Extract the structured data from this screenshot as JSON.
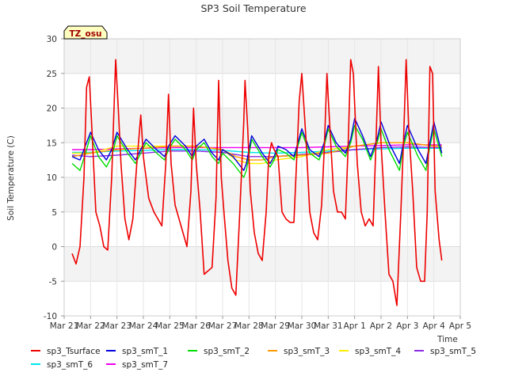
{
  "chart_data": {
    "type": "line",
    "title": "SP3 Soil Temperature",
    "xlabel": "Time",
    "ylabel": "Soil Temperature (C)",
    "annotation": "TZ_osu",
    "xlim": [
      0,
      15
    ],
    "ylim": [
      -10,
      30
    ],
    "yticks": [
      -10,
      -5,
      0,
      5,
      10,
      15,
      20,
      25,
      30
    ],
    "xtick_values": [
      0,
      1,
      2,
      3,
      4,
      5,
      6,
      7,
      8,
      9,
      10,
      11,
      12,
      13,
      14,
      15
    ],
    "xtick_labels": [
      "Mar 21",
      "Mar 22",
      "Mar 23",
      "Mar 24",
      "Mar 25",
      "Mar 26",
      "Mar 27",
      "Mar 28",
      "Mar 29",
      "Mar 30",
      "Mar 31",
      "Apr 1",
      "Apr 2",
      "Apr 3",
      "Apr 4",
      "Apr 5"
    ],
    "grid": true,
    "background_bands": true,
    "legend_position": "bottom",
    "x_units": "days since Mar 21",
    "series": [
      {
        "name": "sp3_Tsurface",
        "color": "#ee0000",
        "x": [
          0.3,
          0.45,
          0.6,
          0.75,
          0.85,
          0.95,
          1.05,
          1.2,
          1.35,
          1.5,
          1.65,
          1.8,
          1.95,
          2.05,
          2.15,
          2.3,
          2.45,
          2.6,
          2.75,
          2.9,
          3.0,
          3.2,
          3.4,
          3.55,
          3.7,
          3.85,
          3.95,
          4.05,
          4.2,
          4.35,
          4.5,
          4.65,
          4.8,
          4.9,
          5.0,
          5.15,
          5.3,
          5.45,
          5.6,
          5.75,
          5.85,
          5.95,
          6.05,
          6.2,
          6.35,
          6.5,
          6.65,
          6.8,
          6.85,
          6.95,
          7.05,
          7.2,
          7.35,
          7.5,
          7.65,
          7.75,
          7.85,
          7.95,
          8.1,
          8.25,
          8.4,
          8.55,
          8.7,
          8.8,
          8.9,
          9.0,
          9.15,
          9.3,
          9.45,
          9.6,
          9.75,
          9.85,
          9.95,
          10.05,
          10.2,
          10.35,
          10.5,
          10.65,
          10.75,
          10.85,
          10.95,
          11.1,
          11.25,
          11.4,
          11.55,
          11.7,
          11.8,
          11.9,
          12.0,
          12.15,
          12.3,
          12.45,
          12.6,
          12.75,
          12.85,
          12.95,
          13.05,
          13.2,
          13.35,
          13.5,
          13.65,
          13.75,
          13.85,
          13.95,
          14.05,
          14.2,
          14.3
        ],
        "y": [
          -1,
          -2.5,
          0,
          10,
          23,
          24.5,
          17,
          5,
          3,
          0,
          -0.5,
          10,
          27,
          20,
          12,
          4,
          1,
          4,
          12,
          19,
          13,
          7,
          5,
          4,
          3,
          12,
          22,
          12,
          6,
          4,
          2,
          0,
          8,
          20,
          12,
          5,
          -4,
          -3.5,
          -3,
          7,
          24,
          10,
          5,
          -2,
          -6,
          -7,
          5,
          18,
          24,
          17,
          8,
          2,
          -1,
          -2,
          5,
          13,
          15,
          14,
          13,
          5,
          4,
          3.5,
          3.5,
          12,
          21,
          25,
          16,
          5,
          2,
          1,
          6,
          14,
          25,
          18,
          8,
          5,
          5,
          4,
          14,
          27,
          25,
          12,
          5,
          3,
          4,
          3,
          14,
          26,
          15,
          5,
          -4,
          -5,
          -8.5,
          5,
          15,
          27,
          17,
          8,
          -3,
          -5,
          -5,
          5,
          26,
          25,
          8,
          1,
          -2
        ]
      },
      {
        "name": "sp3_smT_1",
        "color": "#0000dd",
        "x": [
          0.3,
          0.6,
          0.85,
          1.0,
          1.3,
          1.6,
          1.8,
          2.0,
          2.4,
          2.7,
          2.9,
          3.1,
          3.5,
          3.8,
          3.95,
          4.2,
          4.6,
          4.85,
          5.0,
          5.3,
          5.6,
          5.85,
          6.0,
          6.4,
          6.8,
          6.9,
          7.1,
          7.5,
          7.8,
          7.95,
          8.1,
          8.4,
          8.7,
          8.85,
          9.0,
          9.3,
          9.65,
          9.85,
          10.0,
          10.3,
          10.65,
          10.85,
          11.0,
          11.3,
          11.6,
          11.85,
          12.0,
          12.3,
          12.7,
          12.85,
          13.0,
          13.4,
          13.7,
          13.85,
          14.0,
          14.3
        ],
        "y": [
          13,
          12.5,
          15,
          16.5,
          14,
          12.5,
          14,
          16.5,
          14,
          12.5,
          14,
          15.5,
          14,
          13,
          14.5,
          16,
          14.5,
          13,
          14.5,
          15.5,
          13.5,
          12.5,
          14,
          13,
          11,
          12,
          16,
          13.5,
          12,
          13,
          14.5,
          14,
          13,
          15,
          17,
          14,
          13,
          15,
          17.5,
          15,
          13.5,
          15.5,
          18.5,
          16,
          13,
          15.5,
          18,
          15,
          12,
          15,
          17.5,
          14,
          12,
          15,
          18,
          13.5
        ]
      },
      {
        "name": "sp3_smT_2",
        "color": "#00dd00",
        "x": [
          0.3,
          0.6,
          0.85,
          1.0,
          1.3,
          1.6,
          1.8,
          2.0,
          2.4,
          2.7,
          2.9,
          3.1,
          3.5,
          3.8,
          3.95,
          4.2,
          4.6,
          4.85,
          5.0,
          5.3,
          5.6,
          5.85,
          6.0,
          6.4,
          6.8,
          6.9,
          7.1,
          7.5,
          7.8,
          7.95,
          8.1,
          8.4,
          8.7,
          8.85,
          9.0,
          9.3,
          9.65,
          9.85,
          10.0,
          10.3,
          10.65,
          10.85,
          11.0,
          11.3,
          11.6,
          11.85,
          12.0,
          12.3,
          12.7,
          12.85,
          13.0,
          13.4,
          13.7,
          13.85,
          14.0,
          14.3
        ],
        "y": [
          12,
          11,
          14,
          16,
          13,
          11.5,
          13,
          16,
          13.5,
          12,
          13.5,
          15,
          13.5,
          12.5,
          14,
          15.5,
          14,
          12.5,
          14,
          15,
          13,
          12,
          13.5,
          12,
          10,
          11,
          15.5,
          13,
          11.5,
          12.5,
          14,
          13.5,
          12.5,
          14.5,
          16.5,
          13.5,
          12.5,
          14.5,
          17,
          14.5,
          13,
          15,
          17.5,
          15.5,
          12.5,
          15,
          17,
          14,
          11,
          14.5,
          16.5,
          13,
          11,
          14.5,
          17,
          13
        ]
      },
      {
        "name": "sp3_smT_3",
        "color": "#ff9900",
        "x": [
          0.3,
          1,
          2,
          3,
          4,
          5,
          6,
          6.5,
          7,
          7.5,
          8,
          9,
          10,
          11,
          12,
          13,
          14,
          14.3
        ],
        "y": [
          13,
          13.5,
          14,
          14.2,
          14.5,
          14.5,
          14,
          13,
          12.5,
          12.5,
          13,
          13.2,
          13.5,
          14.5,
          15,
          15,
          14.5,
          14.5
        ]
      },
      {
        "name": "sp3_smT_4",
        "color": "#ffee00",
        "x": [
          0.3,
          1,
          2,
          3,
          4,
          5,
          6,
          6.5,
          7,
          7.5,
          8,
          9,
          10,
          11,
          12,
          13,
          14,
          14.3
        ],
        "y": [
          13.5,
          13.5,
          14.5,
          14.5,
          14.5,
          14.5,
          14,
          12.5,
          12,
          12,
          12.5,
          13,
          14,
          14.5,
          15,
          15,
          14.5,
          14.5
        ]
      },
      {
        "name": "sp3_smT_5",
        "color": "#8a2be2",
        "x": [
          0.3,
          1,
          2,
          3,
          4,
          5,
          6,
          7,
          8,
          9,
          10,
          11,
          12,
          13,
          14,
          14.3
        ],
        "y": [
          13.2,
          13,
          13.2,
          13.5,
          13.8,
          13.8,
          13.6,
          13,
          13,
          13.3,
          13.6,
          14,
          14.3,
          14.4,
          14.3,
          14.3
        ]
      },
      {
        "name": "sp3_smT_6",
        "color": "#00e5ee",
        "x": [
          0.3,
          1,
          2,
          3,
          4,
          5,
          6,
          7,
          8,
          9,
          10,
          11,
          12,
          13,
          14,
          14.3
        ],
        "y": [
          13.6,
          13.6,
          13.8,
          13.9,
          14,
          14,
          13.9,
          13.6,
          13.5,
          13.6,
          13.8,
          14,
          14.1,
          14.2,
          14.2,
          14.2
        ]
      },
      {
        "name": "sp3_smT_7",
        "color": "#ee00ee",
        "x": [
          0.3,
          1,
          2,
          3,
          4,
          5,
          6,
          7,
          8,
          9,
          10,
          11,
          12,
          13,
          14,
          14.3
        ],
        "y": [
          14,
          14,
          14.1,
          14.2,
          14.3,
          14.3,
          14.3,
          14.3,
          14.3,
          14.3,
          14.4,
          14.5,
          14.6,
          14.7,
          14.7,
          14.7
        ]
      }
    ]
  }
}
